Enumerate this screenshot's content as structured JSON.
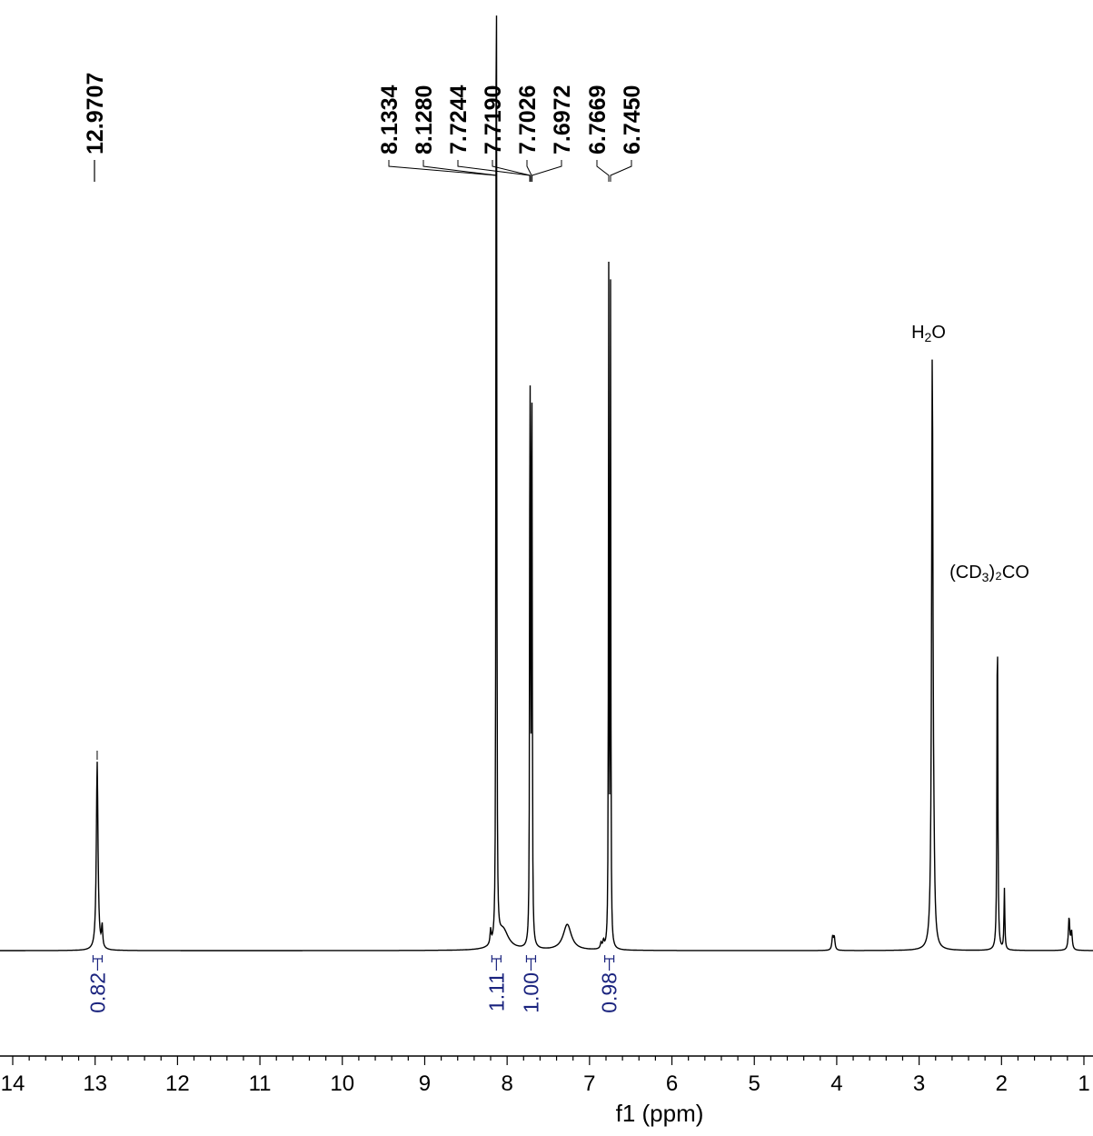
{
  "chart_data": {
    "type": "line",
    "xlabel": "f1 (ppm)",
    "xlim": [
      14,
      1
    ],
    "reversed_x": true,
    "ticks": [
      "14",
      "13",
      "12",
      "11",
      "10",
      "9",
      "8",
      "7",
      "6",
      "5",
      "4",
      "3",
      "2",
      "1"
    ],
    "peak_labels": [
      {
        "text": "12.9707",
        "ppm": 12.9707
      },
      {
        "text": "8.1334",
        "ppm": 8.1334
      },
      {
        "text": "8.1280",
        "ppm": 8.128
      },
      {
        "text": "7.7244",
        "ppm": 7.7244
      },
      {
        "text": "7.7190",
        "ppm": 7.719
      },
      {
        "text": "7.7026",
        "ppm": 7.7026
      },
      {
        "text": "7.6972",
        "ppm": 7.6972
      },
      {
        "text": "6.7669",
        "ppm": 6.7669
      },
      {
        "text": "6.7450",
        "ppm": 6.745
      }
    ],
    "integrals": [
      {
        "text": "0.82",
        "ppm": 12.97
      },
      {
        "text": "1.11",
        "ppm": 8.13
      },
      {
        "text": "1.00",
        "ppm": 7.71
      },
      {
        "text": "0.98",
        "ppm": 6.76
      }
    ],
    "annotations": [
      {
        "text": "H",
        "sub": "2",
        "tail": "O",
        "ppm": 2.84
      },
      {
        "text": "(CD",
        "sub": "3",
        "tail": ")₂CO",
        "ppm": 2.05
      }
    ],
    "peaks": [
      {
        "ppm": 12.975,
        "height": 0.263,
        "width": 0.012
      },
      {
        "ppm": 12.915,
        "height": 0.03,
        "width": 0.008
      },
      {
        "ppm": 8.1334,
        "height": 0.93,
        "width": 0.004
      },
      {
        "ppm": 8.128,
        "height": 0.93,
        "width": 0.004
      },
      {
        "ppm": 8.2,
        "height": 0.02,
        "width": 0.008
      },
      {
        "ppm": 8.05,
        "height": 0.028,
        "width": 0.08
      },
      {
        "ppm": 7.7244,
        "height": 0.53,
        "width": 0.004
      },
      {
        "ppm": 7.719,
        "height": 0.54,
        "width": 0.004
      },
      {
        "ppm": 7.7026,
        "height": 0.53,
        "width": 0.004
      },
      {
        "ppm": 7.6972,
        "height": 0.52,
        "width": 0.004
      },
      {
        "ppm": 7.27,
        "height": 0.036,
        "width": 0.06
      },
      {
        "ppm": 6.7669,
        "height": 0.93,
        "width": 0.004
      },
      {
        "ppm": 6.745,
        "height": 0.91,
        "width": 0.004
      },
      {
        "ppm": 6.86,
        "height": 0.008,
        "width": 0.01
      },
      {
        "ppm": 6.83,
        "height": 0.01,
        "width": 0.01
      },
      {
        "ppm": 4.05,
        "height": 0.018,
        "width": 0.01
      },
      {
        "ppm": 4.03,
        "height": 0.018,
        "width": 0.01
      },
      {
        "ppm": 2.84,
        "height": 0.83,
        "width": 0.01
      },
      {
        "ppm": 2.82,
        "height": 0.05,
        "width": 0.01
      },
      {
        "ppm": 2.05,
        "height": 0.48,
        "width": 0.006
      },
      {
        "ppm": 1.965,
        "height": 0.085,
        "width": 0.006
      },
      {
        "ppm": 1.18,
        "height": 0.045,
        "width": 0.01
      },
      {
        "ppm": 1.15,
        "height": 0.025,
        "width": 0.01
      }
    ]
  }
}
